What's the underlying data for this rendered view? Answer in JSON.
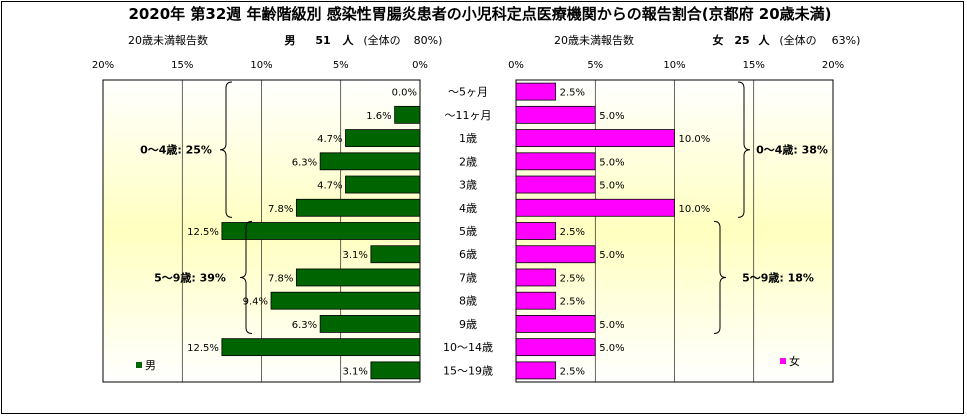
{
  "chart_data": {
    "type": "bar",
    "title": "2020年 第32週 年齢階級別 感染性胃腸炎患者の小児科定点医療機関からの報告割合(京都府 20歳未満)",
    "categories": [
      "～5ヶ月",
      "～11ヶ月",
      "1歳",
      "2歳",
      "3歳",
      "4歳",
      "5歳",
      "6歳",
      "7歳",
      "8歳",
      "9歳",
      "10～14歳",
      "15～19歳"
    ],
    "xlim": [
      0,
      20
    ],
    "xticks": [
      "0%",
      "5%",
      "10%",
      "15%",
      "20%"
    ],
    "x_axis_label": "20歳未満報告数",
    "grid": true,
    "series": [
      {
        "name": "男",
        "side": "left",
        "color": "#006400",
        "header_sex": "男",
        "header_count": "51",
        "header_unit": "人",
        "header_total_label": "(全体の",
        "header_total_pct": "80%)",
        "values": [
          0.0,
          1.6,
          4.7,
          6.3,
          4.7,
          7.8,
          12.5,
          3.1,
          7.8,
          9.4,
          6.3,
          12.5,
          3.1
        ],
        "value_labels": [
          "0.0%",
          "1.6%",
          "4.7%",
          "6.3%",
          "4.7%",
          "7.8%",
          "12.5%",
          "3.1%",
          "7.8%",
          "9.4%",
          "6.3%",
          "12.5%",
          "3.1%"
        ],
        "groups": [
          {
            "label": "0～4歳: 25%",
            "from": 0,
            "to": 5
          },
          {
            "label": "5～9歳: 39%",
            "from": 6,
            "to": 10
          }
        ]
      },
      {
        "name": "女",
        "side": "right",
        "color": "#ff00ff",
        "header_sex": "女",
        "header_count": "25",
        "header_unit": "人",
        "header_total_label": "(全体の",
        "header_total_pct": "63%)",
        "values": [
          2.5,
          5.0,
          10.0,
          5.0,
          5.0,
          10.0,
          2.5,
          5.0,
          2.5,
          2.5,
          5.0,
          5.0,
          2.5
        ],
        "value_labels": [
          "2.5%",
          "5.0%",
          "10.0%",
          "5.0%",
          "5.0%",
          "10.0%",
          "2.5%",
          "5.0%",
          "2.5%",
          "2.5%",
          "5.0%",
          "5.0%",
          "2.5%"
        ],
        "groups": [
          {
            "label": "0～4歳: 38%",
            "from": 0,
            "to": 5
          },
          {
            "label": "5～9歳: 18%",
            "from": 6,
            "to": 10
          }
        ]
      }
    ]
  },
  "colors": {
    "male": "#006400",
    "female": "#ff00ff",
    "plot_gradient_center": "#ffffc0",
    "plot_gradient_edge": "#ffffff"
  }
}
